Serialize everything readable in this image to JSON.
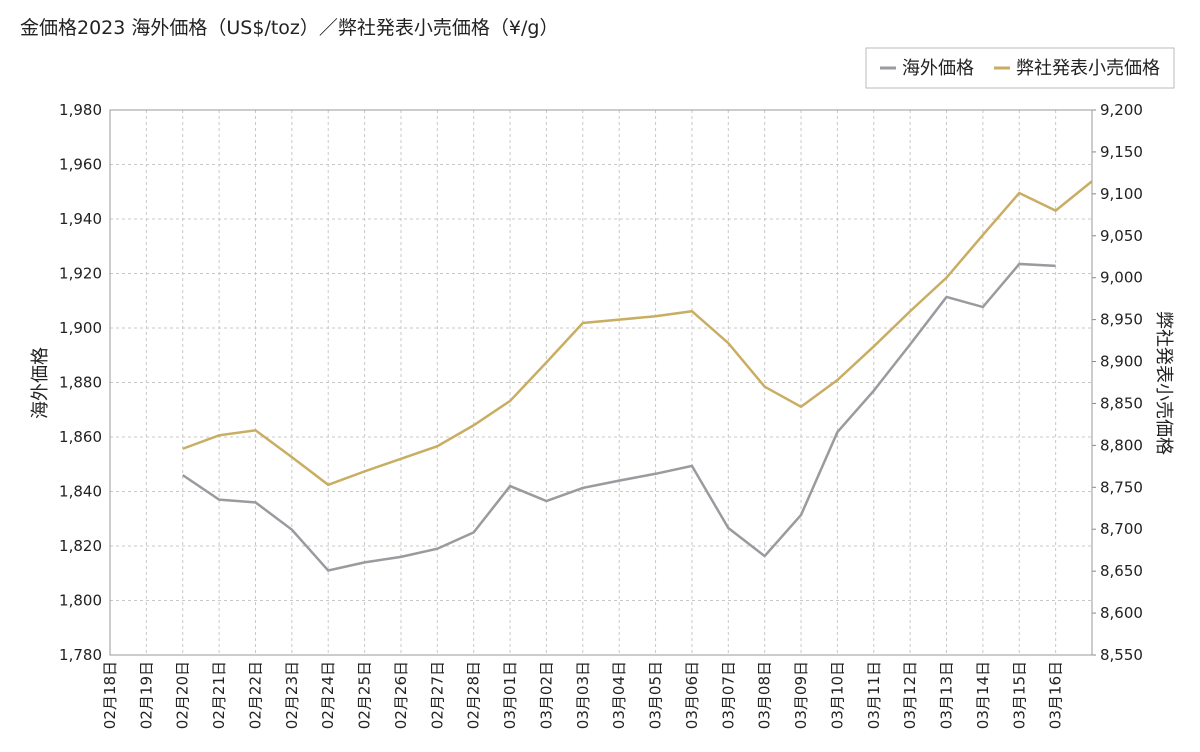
{
  "chart_data": {
    "type": "line",
    "title": "金価格2023 海外価格（US$/toz）／弊社発表小売価格（¥/g）",
    "y_label": "海外価格",
    "y2_label": "弊社発表小売価格",
    "categories": [
      "02月18日",
      "02月19日",
      "02月20日",
      "02月21日",
      "02月22日",
      "02月23日",
      "02月24日",
      "02月25日",
      "02月26日",
      "02月27日",
      "02月28日",
      "03月01日",
      "03月02日",
      "03月03日",
      "03月04日",
      "03月05日",
      "03月06日",
      "03月07日",
      "03月08日",
      "03月09日",
      "03月10日",
      "03月11日",
      "03月12日",
      "03月13日",
      "03月14日",
      "03月15日",
      "03月16日",
      null
    ],
    "series": [
      {
        "name": "海外価格",
        "color": "#9a9a9f",
        "axis": "y",
        "values": [
          null,
          null,
          1846,
          1837,
          1836,
          1826,
          1811,
          1814,
          1816,
          1819,
          1825,
          1842,
          1836.5,
          1841.3,
          1844,
          1846.5,
          1849.4,
          1826.6,
          1816.3,
          1831.4,
          1861.8,
          1877,
          1894,
          1911.4,
          1907.7,
          1923.5,
          1922.8,
          null
        ]
      },
      {
        "name": "弊社発表小売価格",
        "color": "#c9ad62",
        "axis": "y2",
        "values": [
          null,
          null,
          8796,
          8812,
          8818,
          8786,
          8753,
          8769,
          8784,
          8799,
          8824,
          8853,
          8899,
          8946,
          8950,
          8954,
          8960,
          8922,
          8870,
          8846,
          8878,
          8918,
          8960,
          9000,
          9051,
          9101,
          9080,
          9115
        ]
      }
    ],
    "ylim": [
      1780,
      1980
    ],
    "yticks": [
      {
        "value": 1780,
        "label": "1,780"
      },
      {
        "value": 1800,
        "label": "1,800"
      },
      {
        "value": 1820,
        "label": "1,820"
      },
      {
        "value": 1840,
        "label": "1,840"
      },
      {
        "value": 1860,
        "label": "1,860"
      },
      {
        "value": 1880,
        "label": "1,880"
      },
      {
        "value": 1900,
        "label": "1,900"
      },
      {
        "value": 1920,
        "label": "1,920"
      },
      {
        "value": 1940,
        "label": "1,940"
      },
      {
        "value": 1960,
        "label": "1,960"
      },
      {
        "value": 1980,
        "label": "1,980"
      }
    ],
    "y2lim": [
      8550,
      9200
    ],
    "y2ticks": [
      {
        "value": 8550,
        "label": "8,550"
      },
      {
        "value": 8600,
        "label": "8,600"
      },
      {
        "value": 8650,
        "label": "8,650"
      },
      {
        "value": 8700,
        "label": "8,700"
      },
      {
        "value": 8750,
        "label": "8,750"
      },
      {
        "value": 8800,
        "label": "8,800"
      },
      {
        "value": 8850,
        "label": "8,850"
      },
      {
        "value": 8900,
        "label": "8,900"
      },
      {
        "value": 8950,
        "label": "8,950"
      },
      {
        "value": 9000,
        "label": "9,000"
      },
      {
        "value": 9050,
        "label": "9,050"
      },
      {
        "value": 9100,
        "label": "9,100"
      },
      {
        "value": 9150,
        "label": "9,150"
      },
      {
        "value": 9200,
        "label": "9,200"
      }
    ],
    "grid": true,
    "legend": "top-right"
  }
}
